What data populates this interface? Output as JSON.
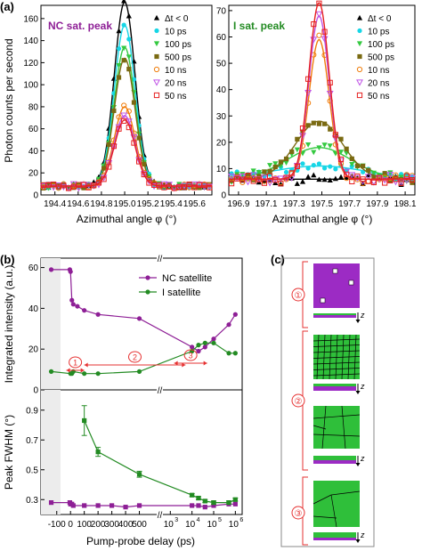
{
  "panel_labels": {
    "a": "(a)",
    "b": "(b)",
    "c": "(c)"
  },
  "colors": {
    "black": "#000000",
    "cyan": "#16d6e6",
    "green": "#34c940",
    "olive": "#7a6a12",
    "orange": "#f07d0c",
    "violet": "#c054e6",
    "red": "#e62020",
    "purple": "#8e1f96",
    "green2": "#238b23",
    "grain": "#2fbf3a",
    "nanocrystal": "#9c2bc4",
    "marker_red": "#e63232"
  },
  "chart_data": [
    {
      "id": "a-left",
      "type": "scatter",
      "annotation": "NC sat. peak",
      "xlabel": "Azimuthal angle φ (°)",
      "ylabel": "Photon counts per second",
      "xlim": [
        194.28,
        195.75
      ],
      "ylim": [
        0,
        172
      ],
      "xticks": [
        "194.4",
        "194.6",
        "194.8",
        "195.0",
        "195.2",
        "195.4",
        "195.6"
      ],
      "yticks": [
        "0",
        "20",
        "40",
        "60",
        "80",
        "100",
        "120",
        "140",
        "160"
      ],
      "series": [
        {
          "name": "Δt < 0",
          "peak": 167,
          "fwhm": 0.21
        },
        {
          "name": "10 ps",
          "peak": 146,
          "fwhm": 0.21
        },
        {
          "name": "100 ps",
          "peak": 126,
          "fwhm": 0.21
        },
        {
          "name": "500 ps",
          "peak": 116,
          "fwhm": 0.21
        },
        {
          "name": "10 ns",
          "peak": 72,
          "fwhm": 0.21
        },
        {
          "name": "20 ns",
          "peak": 64,
          "fwhm": 0.21
        },
        {
          "name": "50 ns",
          "peak": 60,
          "fwhm": 0.21
        }
      ],
      "baseline": 8,
      "center": 195.0
    },
    {
      "id": "a-right",
      "type": "scatter",
      "annotation": "I sat. peak",
      "xlabel": "Azimuthal angle φ (°)",
      "xlim": [
        196.83,
        198.17
      ],
      "ylim": [
        0,
        72
      ],
      "xticks": [
        "196.9",
        "197.1",
        "197.3",
        "197.5",
        "197.7",
        "197.9",
        "198.1"
      ],
      "yticks": [
        "0",
        "10",
        "20",
        "30",
        "40",
        "50",
        "60",
        "70"
      ],
      "series": [
        {
          "name": "Δt < 0",
          "peak": 0,
          "fwhm": 0.2
        },
        {
          "name": "10 ps",
          "peak": 5,
          "fwhm": 0.8
        },
        {
          "name": "100 ps",
          "peak": 12,
          "fwhm": 0.55
        },
        {
          "name": "500 ps",
          "peak": 22,
          "fwhm": 0.4
        },
        {
          "name": "10 ns",
          "peak": 53,
          "fwhm": 0.17
        },
        {
          "name": "20 ns",
          "peak": 62,
          "fwhm": 0.17
        },
        {
          "name": "50 ns",
          "peak": 67,
          "fwhm": 0.17
        }
      ],
      "baseline": 6,
      "center": 197.48
    },
    {
      "id": "b-top",
      "type": "line",
      "ylabel": "Integrated intensity (a.u.)",
      "xlim_linear": [
        -150,
        600
      ],
      "xlim_log": [
        2.7,
        6.15
      ],
      "ylim": [
        0,
        62
      ],
      "yticks": [
        "0",
        "20",
        "40",
        "60"
      ],
      "series": [
        {
          "name": "NC satellite",
          "x": [
            -140,
            -5,
            0,
            10,
            20,
            50,
            100,
            200,
            500,
            10000,
            20000,
            40000,
            100000,
            500000,
            1000000
          ],
          "y": [
            59,
            59,
            58,
            44,
            42,
            41,
            39,
            37,
            35,
            21,
            19,
            21,
            25,
            32,
            37
          ]
        },
        {
          "name": "I satellite",
          "x": [
            -140,
            0,
            10,
            20,
            100,
            200,
            500,
            10000,
            20000,
            40000,
            100000,
            500000,
            1000000
          ],
          "y": [
            9,
            8,
            8,
            9,
            8,
            8,
            9,
            19,
            22,
            23,
            23,
            18,
            18
          ]
        }
      ],
      "regions": [
        {
          "label": "1",
          "x": [
            -30,
            100
          ]
        },
        {
          "label": "2",
          "x": [
            100,
            5000
          ]
        },
        {
          "label": "3",
          "x": [
            1500,
            50000
          ]
        }
      ]
    },
    {
      "id": "b-bottom",
      "type": "line",
      "ylabel": "Peak FWHM (°)",
      "xlabel": "Pump-probe delay (ps)",
      "ylim": [
        0.2,
        1.0
      ],
      "yticks": [
        "0.3",
        "0.5",
        "0.7",
        "0.9"
      ],
      "xticks_linear": [
        "-100",
        "0",
        "100",
        "200",
        "300",
        "400",
        "500"
      ],
      "xticks_log": [
        "10",
        "3",
        "10",
        "4",
        "10",
        "5",
        "10",
        "6"
      ],
      "series": [
        {
          "name": "NC satellite",
          "x": [
            -140,
            -5,
            0,
            10,
            20,
            100,
            200,
            300,
            400,
            500,
            10000,
            20000,
            40000,
            100000,
            500000,
            1000000
          ],
          "y": [
            0.28,
            0.28,
            0.27,
            0.27,
            0.26,
            0.26,
            0.26,
            0.26,
            0.25,
            0.26,
            0.26,
            0.26,
            0.25,
            0.26,
            0.27,
            0.27
          ]
        },
        {
          "name": "I satellite",
          "x": [
            100,
            200,
            500,
            10000,
            20000,
            40000,
            100000,
            500000,
            1000000
          ],
          "y": [
            0.83,
            0.62,
            0.47,
            0.33,
            0.31,
            0.29,
            0.28,
            0.28,
            0.3
          ]
        }
      ],
      "errors": [
        0.1,
        0.03,
        0.02,
        0.01,
        0.01,
        0.01,
        0.01,
        0.01,
        0.01
      ]
    }
  ],
  "legend_b": [
    "NC satellite",
    "I satellite"
  ],
  "panel_c": {
    "stage1_label": "①",
    "stage2_label": "②",
    "stage3_label": "③",
    "z_label": "z"
  },
  "region_labels": [
    "①",
    "②",
    "③"
  ],
  "axis_break": "//"
}
